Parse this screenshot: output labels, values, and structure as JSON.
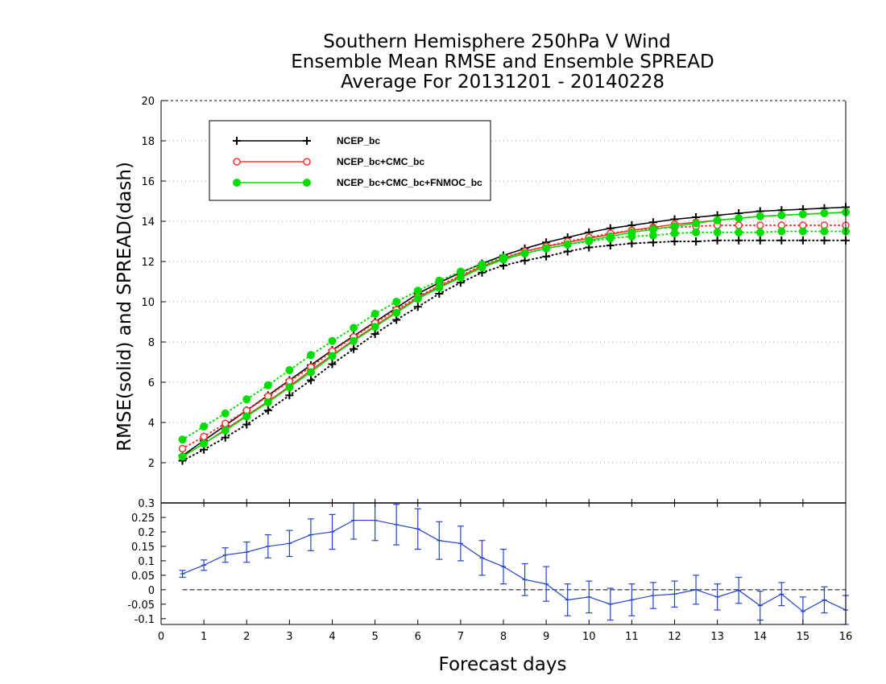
{
  "chart_data": {
    "type": "line",
    "title_lines": [
      "Southern Hemisphere 250hPa V Wind",
      "Ensemble Mean RMSE and Ensemble SPREAD",
      "Average For 20131201 - 20140228"
    ],
    "xlabel": "Forecast days",
    "ylabel": "RMSE(solid) and SPREAD(dash)",
    "xlim": [
      0,
      16
    ],
    "x_ticks": [
      "0",
      "1",
      "2",
      "3",
      "4",
      "5",
      "6",
      "7",
      "8",
      "9",
      "10",
      "11",
      "12",
      "13",
      "14",
      "15",
      "16"
    ],
    "top_panel": {
      "ylim": [
        0,
        20
      ],
      "y_ticks": [
        "2",
        "4",
        "6",
        "8",
        "10",
        "12",
        "14",
        "16",
        "18",
        "20"
      ],
      "grid": "horizontal dotted",
      "legend_position": "top-left",
      "x": [
        0.5,
        1,
        1.5,
        2,
        2.5,
        3,
        3.5,
        4,
        4.5,
        5,
        5.5,
        6,
        6.5,
        7,
        7.5,
        8,
        8.5,
        9,
        9.5,
        10,
        10.5,
        11,
        11.5,
        12,
        12.5,
        13,
        13.5,
        14,
        14.5,
        15,
        15.5,
        16
      ],
      "series": [
        {
          "name": "NCEP_bc",
          "color": "#000000",
          "marker": "plus",
          "rmse": [
            2.35,
            3.1,
            3.85,
            4.6,
            5.35,
            6.1,
            6.85,
            7.6,
            8.3,
            9.0,
            9.7,
            10.4,
            10.95,
            11.45,
            11.9,
            12.3,
            12.65,
            12.95,
            13.2,
            13.45,
            13.65,
            13.8,
            13.95,
            14.1,
            14.2,
            14.3,
            14.4,
            14.5,
            14.55,
            14.6,
            14.65,
            14.7
          ],
          "spread": [
            2.1,
            2.65,
            3.25,
            3.9,
            4.6,
            5.35,
            6.1,
            6.9,
            7.65,
            8.4,
            9.1,
            9.75,
            10.4,
            10.95,
            11.45,
            11.8,
            12.05,
            12.25,
            12.5,
            12.7,
            12.8,
            12.9,
            12.95,
            13.0,
            13.0,
            13.05,
            13.05,
            13.05,
            13.05,
            13.05,
            13.05,
            13.05
          ]
        },
        {
          "name": "NCEP_bc+CMC_bc",
          "color": "#ff3030",
          "marker": "open-circle",
          "rmse": [
            2.3,
            2.95,
            3.65,
            4.35,
            5.05,
            5.8,
            6.6,
            7.35,
            8.1,
            8.8,
            9.5,
            10.2,
            10.75,
            11.25,
            11.75,
            12.15,
            12.5,
            12.75,
            12.95,
            13.15,
            13.35,
            13.55,
            13.7,
            13.85,
            13.95,
            14.05,
            14.15,
            14.25,
            14.3,
            14.35,
            14.4,
            14.45
          ],
          "spread": [
            2.7,
            3.3,
            3.95,
            4.6,
            5.3,
            6.05,
            6.75,
            7.55,
            8.25,
            8.95,
            9.6,
            10.25,
            10.8,
            11.3,
            11.8,
            12.2,
            12.5,
            12.75,
            13.0,
            13.2,
            13.4,
            13.55,
            13.65,
            13.7,
            13.75,
            13.8,
            13.8,
            13.8,
            13.8,
            13.8,
            13.8,
            13.8
          ]
        },
        {
          "name": "NCEP_bc+CMC_bc+FNMOC_bc",
          "color": "#00dd00",
          "marker": "filled-circle",
          "rmse": [
            2.3,
            2.95,
            3.6,
            4.3,
            5.0,
            5.75,
            6.5,
            7.3,
            8.05,
            8.75,
            9.45,
            10.15,
            10.7,
            11.2,
            11.7,
            12.1,
            12.4,
            12.65,
            12.85,
            13.05,
            13.25,
            13.45,
            13.6,
            13.75,
            13.9,
            14.05,
            14.15,
            14.25,
            14.3,
            14.35,
            14.4,
            14.45
          ],
          "spread": [
            3.15,
            3.8,
            4.45,
            5.15,
            5.85,
            6.6,
            7.35,
            8.05,
            8.7,
            9.4,
            10.0,
            10.55,
            11.05,
            11.5,
            11.85,
            12.2,
            12.4,
            12.65,
            12.85,
            13.0,
            13.15,
            13.25,
            13.3,
            13.4,
            13.45,
            13.45,
            13.45,
            13.45,
            13.5,
            13.5,
            13.5,
            13.5
          ]
        }
      ]
    },
    "bottom_panel": {
      "ylim": [
        -0.12,
        0.3
      ],
      "y_ticks": [
        "-0.1",
        "-0.05",
        "0",
        "0.05",
        "0.1",
        "0.15",
        "0.2",
        "0.25",
        "0.3"
      ],
      "color": "#2244cc",
      "x": [
        0.5,
        1,
        1.5,
        2,
        2.5,
        3,
        3.5,
        4,
        4.5,
        5,
        5.5,
        6,
        6.5,
        7,
        7.5,
        8,
        8.5,
        9,
        9.5,
        10,
        10.5,
        11,
        11.5,
        12,
        12.5,
        13,
        13.5,
        14,
        14.5,
        15,
        15.5,
        16
      ],
      "values": [
        0.055,
        0.085,
        0.12,
        0.13,
        0.15,
        0.16,
        0.19,
        0.2,
        0.24,
        0.24,
        0.225,
        0.21,
        0.17,
        0.16,
        0.11,
        0.08,
        0.035,
        0.02,
        -0.035,
        -0.025,
        -0.05,
        -0.035,
        -0.02,
        -0.015,
        0.0,
        -0.025,
        -0.002,
        -0.055,
        -0.015,
        -0.075,
        -0.035,
        -0.07
      ],
      "errors": [
        0.012,
        0.018,
        0.025,
        0.035,
        0.04,
        0.045,
        0.055,
        0.06,
        0.065,
        0.07,
        0.07,
        0.07,
        0.065,
        0.06,
        0.06,
        0.06,
        0.055,
        0.06,
        0.055,
        0.055,
        0.055,
        0.055,
        0.045,
        0.045,
        0.05,
        0.045,
        0.045,
        0.05,
        0.04,
        0.05,
        0.045,
        0.05
      ]
    }
  }
}
